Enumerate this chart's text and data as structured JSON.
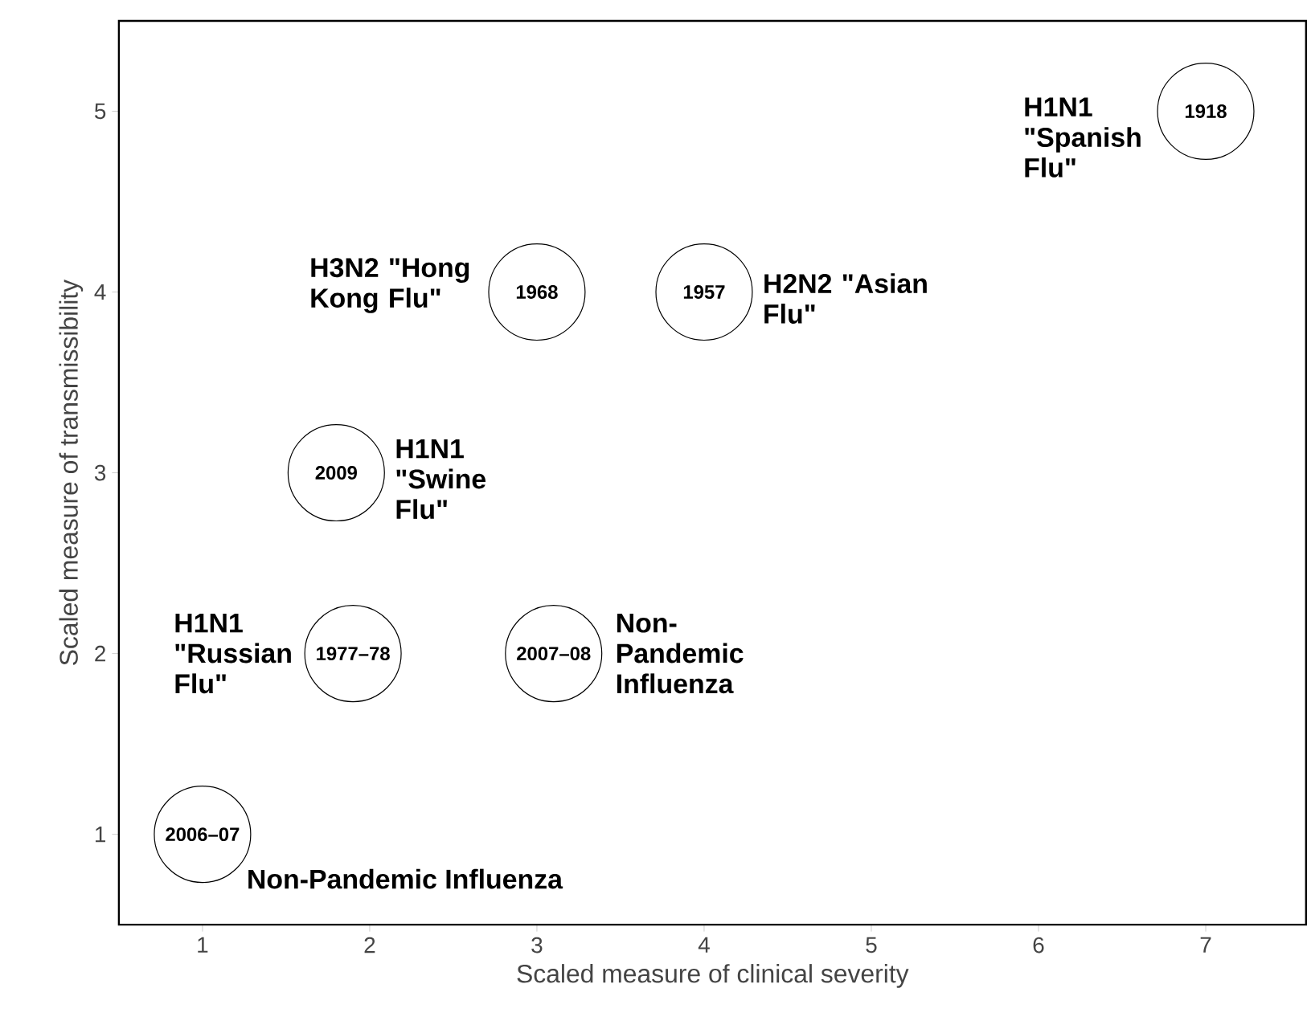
{
  "chart_data": {
    "type": "scatter",
    "xlabel": "Scaled measure of clinical severity",
    "ylabel": "Scaled measure of transmissibility",
    "x": [
      7,
      3,
      4,
      1.8,
      1.9,
      3.1,
      1
    ],
    "values": [
      5,
      4,
      4,
      3,
      2,
      2,
      1
    ],
    "color": "#ffffff",
    "marker": "circle",
    "xlim": [
      0.5,
      7.6
    ],
    "ylim": [
      0.5,
      5.5
    ],
    "xticks": [
      1,
      2,
      3,
      4,
      5,
      6,
      7
    ],
    "yticks": [
      1,
      2,
      3,
      4,
      5
    ],
    "annotations": [
      {
        "text": "1918",
        "x": 7,
        "y": 5
      },
      {
        "text": "1968",
        "x": 3,
        "y": 4
      },
      {
        "text": "1957",
        "x": 4,
        "y": 4
      },
      {
        "text": "2009",
        "x": 1.8,
        "y": 3
      },
      {
        "text": "1977–78",
        "x": 1.9,
        "y": 2
      },
      {
        "text": "2007–08",
        "x": 3.1,
        "y": 2
      },
      {
        "text": "2006–07",
        "x": 1,
        "y": 1
      },
      {
        "text": "H1N1 \"Spanish Flu\"",
        "x": 7,
        "y": 5
      },
      {
        "text": "H3N2 \"Hong Kong Flu\"",
        "x": 3,
        "y": 4
      },
      {
        "text": "H2N2 \"Asian Flu\"",
        "x": 4,
        "y": 4
      },
      {
        "text": "H1N1 \"Swine Flu\"",
        "x": 1.8,
        "y": 3
      },
      {
        "text": "H1N1 \"Russian Flu\"",
        "x": 1.9,
        "y": 2
      },
      {
        "text": "Non-Pandemic Influenza",
        "x": 3.1,
        "y": 2
      },
      {
        "text": "Non-Pandemic Influenza",
        "x": 1,
        "y": 1
      }
    ]
  }
}
